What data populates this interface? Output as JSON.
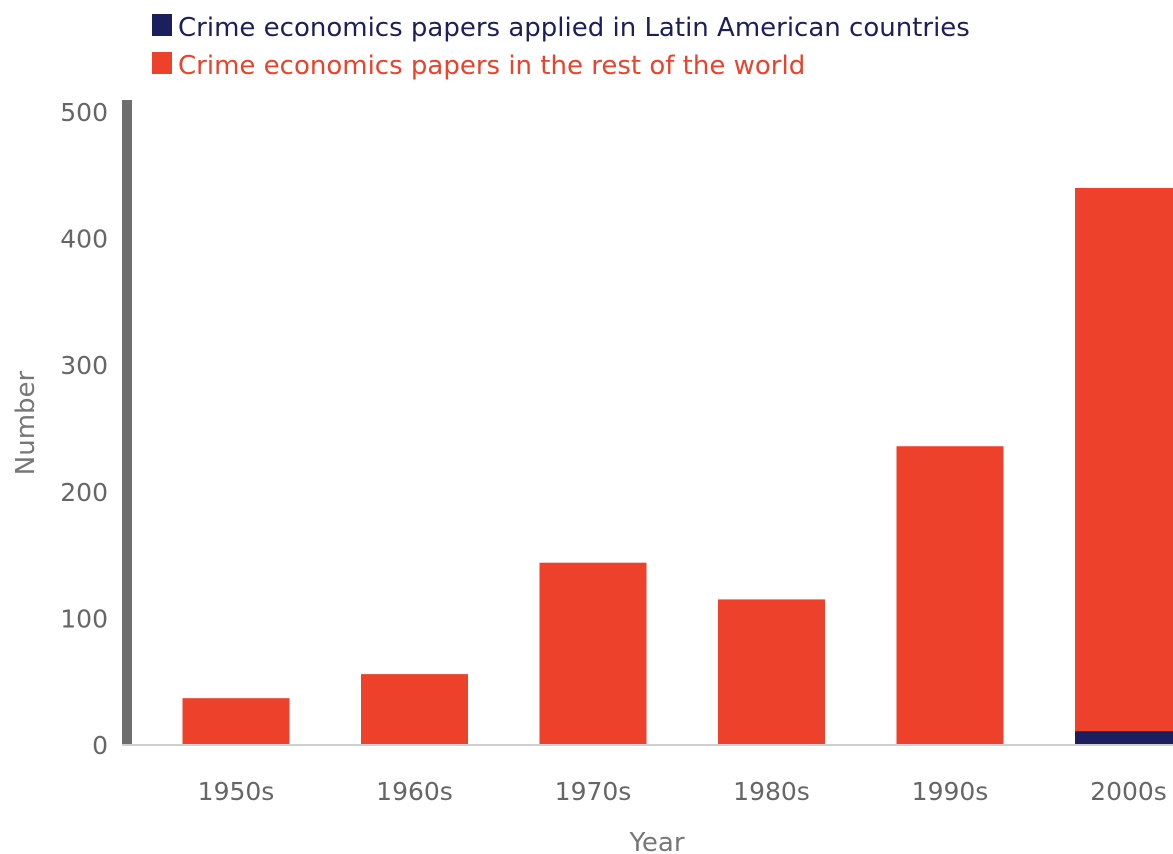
{
  "chart_data": {
    "type": "bar",
    "stacked": true,
    "categories": [
      "1950s",
      "1960s",
      "1970s",
      "1980s",
      "1990s",
      "2000s"
    ],
    "series": [
      {
        "name": "Crime economics papers applied in Latin American countries",
        "color": "#1b1f5e",
        "values": [
          0,
          0,
          0,
          0,
          0,
          11
        ]
      },
      {
        "name": "Crime economics papers in the rest of the world",
        "color": "#ee412b",
        "values": [
          37,
          56,
          144,
          115,
          236,
          429
        ]
      }
    ],
    "xlabel": "Year",
    "ylabel": "Number",
    "ylim": [
      0,
      500
    ],
    "yticks": [
      0,
      100,
      200,
      300,
      400,
      500
    ],
    "legend_position": "top-left",
    "grid": false
  }
}
